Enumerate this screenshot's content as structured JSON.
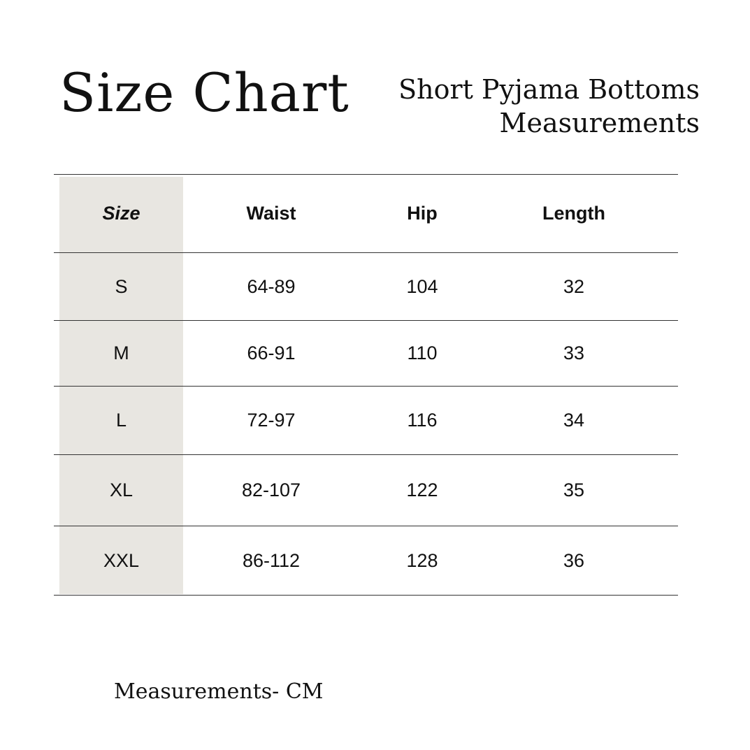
{
  "title": "Size Chart",
  "subtitle": [
    "Short Pyjama Bottoms",
    "Measurements"
  ],
  "table": {
    "headers": [
      "Size",
      "Waist",
      "Hip",
      "Length"
    ],
    "rows": [
      [
        "S",
        "64-89",
        "104",
        "32"
      ],
      [
        "M",
        "66-91",
        "110",
        "33"
      ],
      [
        "L",
        "72-97",
        "116",
        "34"
      ],
      [
        "XL",
        "82-107",
        "122",
        "35"
      ],
      [
        "XXL",
        "86-112",
        "128",
        "36"
      ]
    ]
  },
  "footer": "Measurements- CM"
}
